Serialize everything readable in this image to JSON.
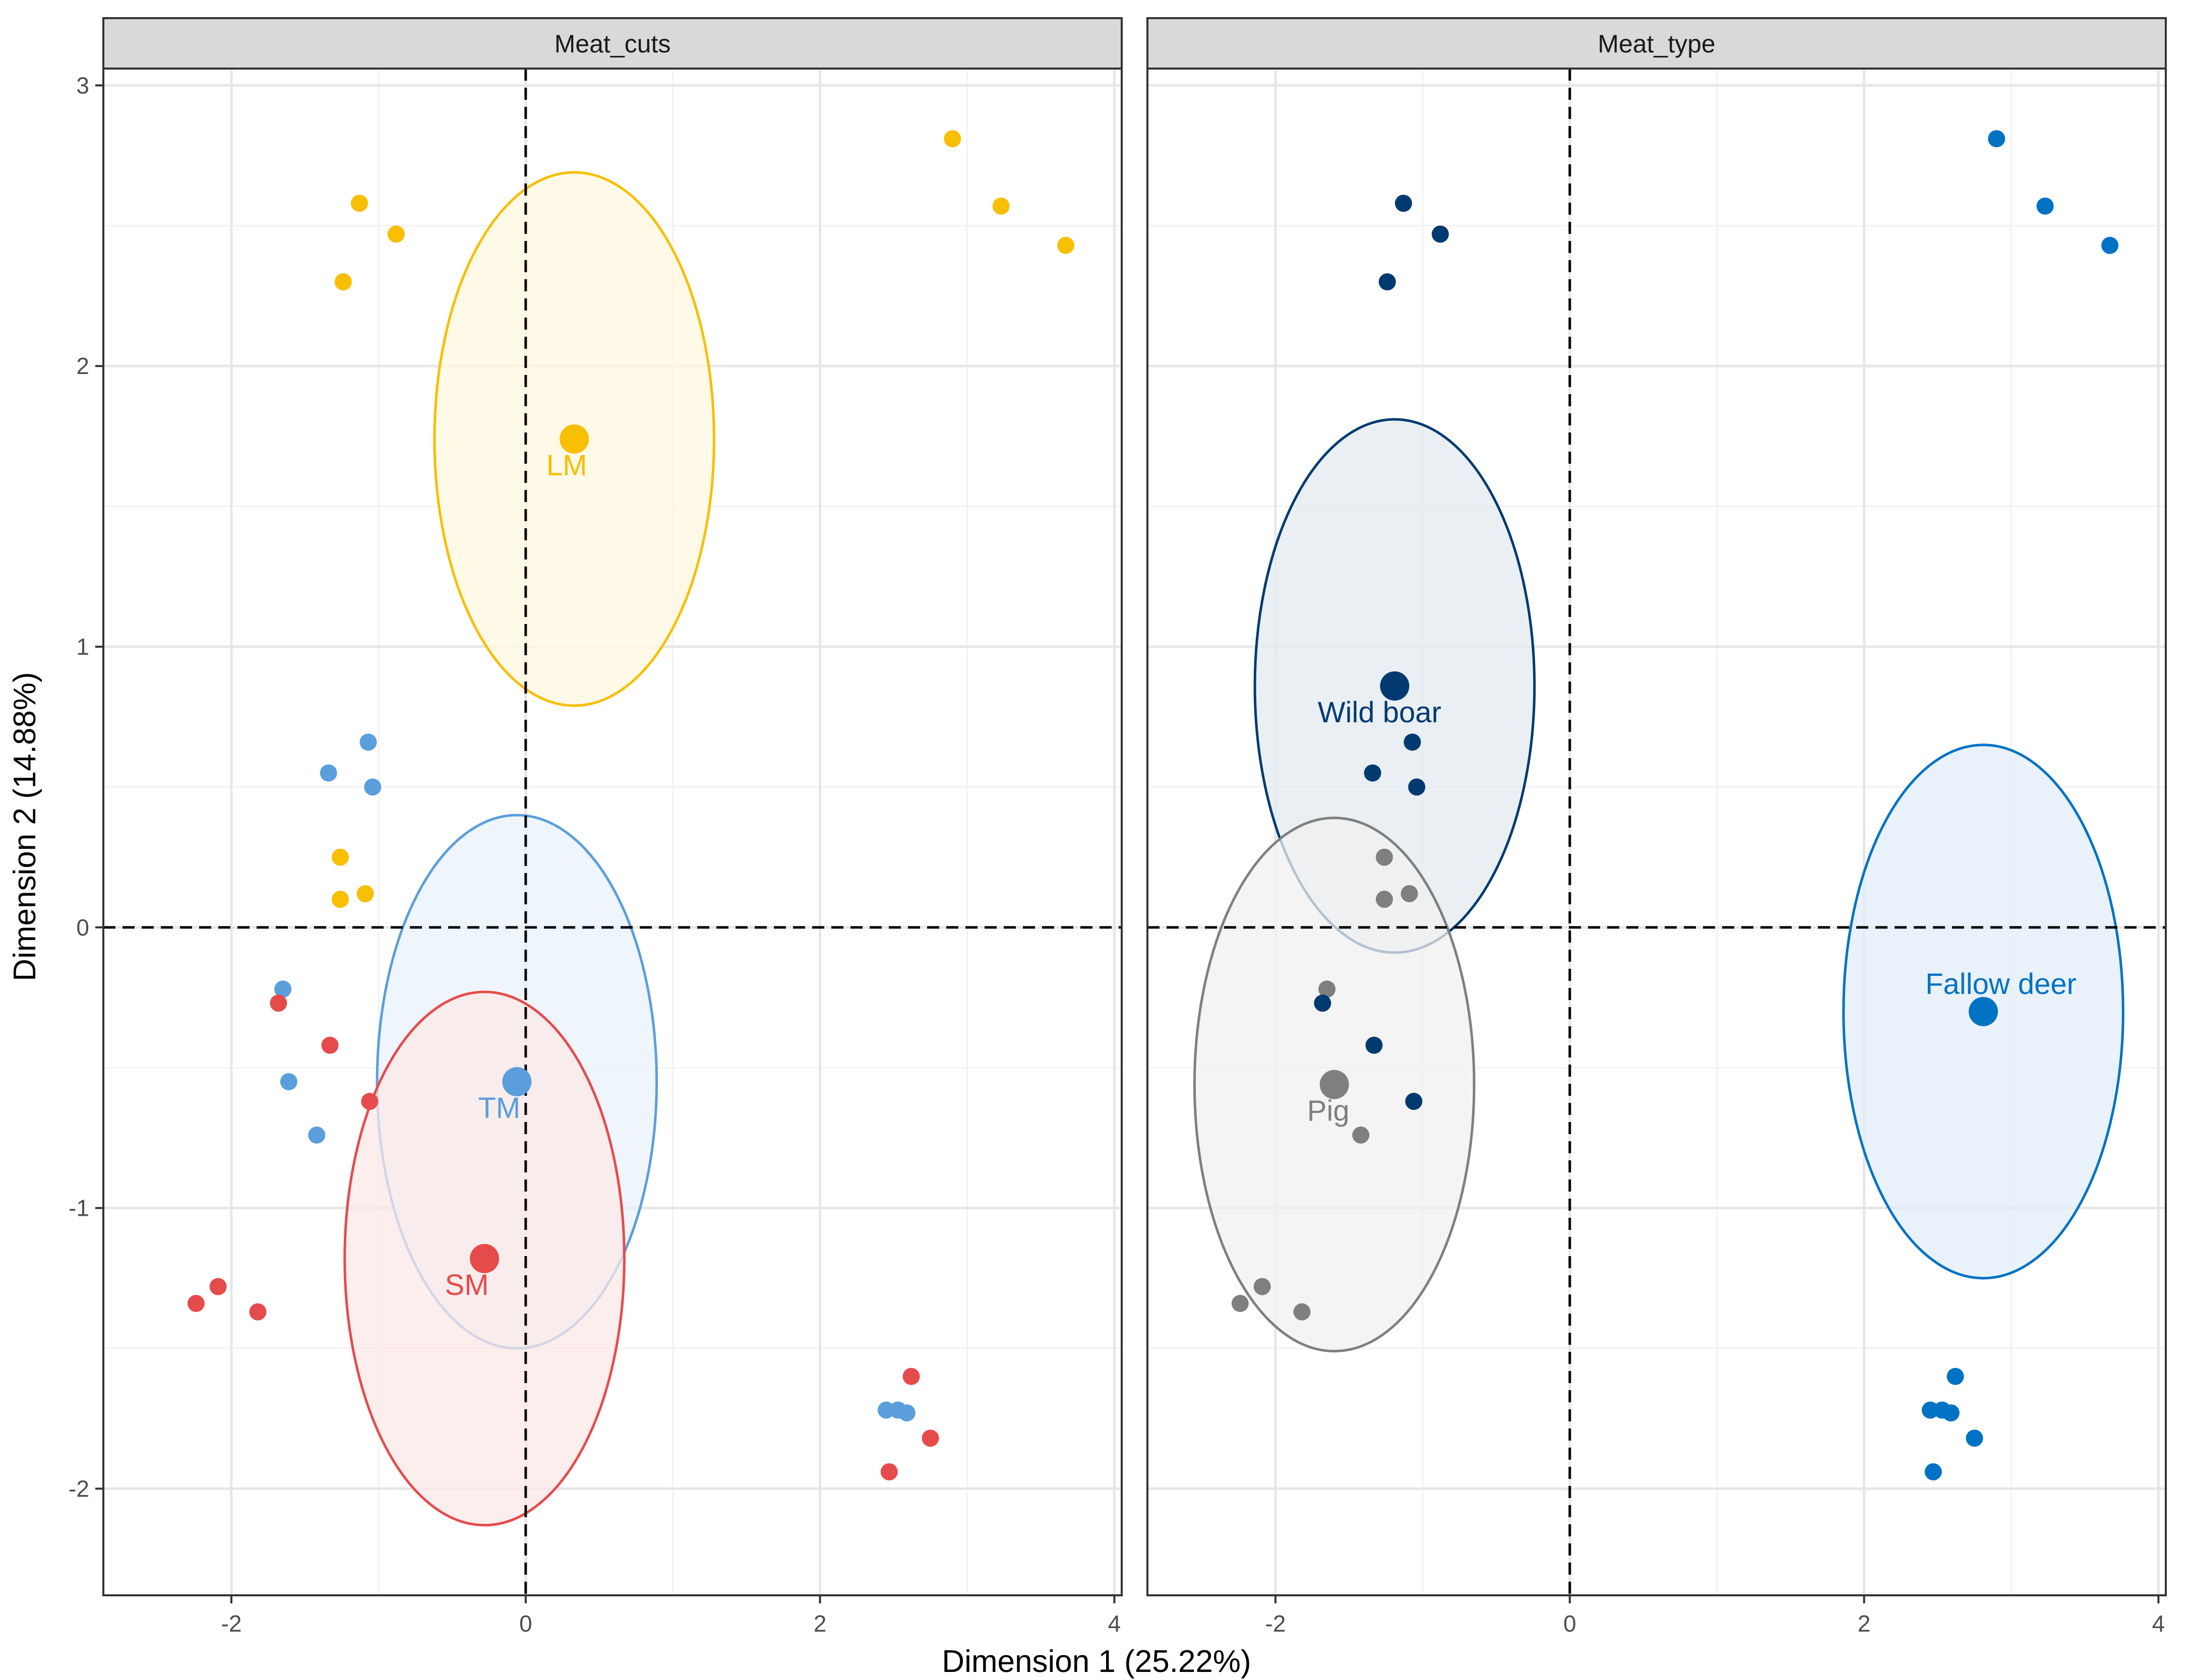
{
  "chart_data": {
    "type": "scatter",
    "xlabel": "Dimension 1 (25.22%)",
    "ylabel": "Dimension 2 (14.88%)",
    "xlim": [
      -2.87,
      4.05
    ],
    "ylim": [
      -2.38,
      3.06
    ],
    "x_ticks": [
      -2,
      0,
      2,
      4
    ],
    "y_ticks": [
      -2,
      -1,
      0,
      1,
      2,
      3
    ],
    "x_tick_labels": [
      "-2",
      "0",
      "2",
      "4"
    ],
    "y_tick_labels": [
      "-2",
      "-1",
      "0",
      "1",
      "2",
      "3"
    ],
    "grid": true,
    "reference_lines": {
      "x": 0,
      "y": 0,
      "style": "dashed"
    },
    "points": [
      {
        "x": -1.13,
        "y": 2.58,
        "cut": "LM",
        "type": "Wild boar"
      },
      {
        "x": -0.88,
        "y": 2.47,
        "cut": "LM",
        "type": "Wild boar"
      },
      {
        "x": -1.24,
        "y": 2.3,
        "cut": "LM",
        "type": "Wild boar"
      },
      {
        "x": 2.9,
        "y": 2.81,
        "cut": "LM",
        "type": "Fallow deer"
      },
      {
        "x": 3.23,
        "y": 2.57,
        "cut": "LM",
        "type": "Fallow deer"
      },
      {
        "x": 3.67,
        "y": 2.43,
        "cut": "LM",
        "type": "Fallow deer"
      },
      {
        "x": -1.26,
        "y": 0.25,
        "cut": "LM",
        "type": "Pig"
      },
      {
        "x": -1.26,
        "y": 0.1,
        "cut": "LM",
        "type": "Pig"
      },
      {
        "x": -1.09,
        "y": 0.12,
        "cut": "LM",
        "type": "Pig"
      },
      {
        "x": -1.07,
        "y": 0.66,
        "cut": "TM",
        "type": "Wild boar"
      },
      {
        "x": -1.34,
        "y": 0.55,
        "cut": "TM",
        "type": "Wild boar"
      },
      {
        "x": -1.04,
        "y": 0.5,
        "cut": "TM",
        "type": "Wild boar"
      },
      {
        "x": -1.65,
        "y": -0.22,
        "cut": "TM",
        "type": "Pig"
      },
      {
        "x": -1.61,
        "y": -0.55,
        "cut": "TM",
        "type": "Pig"
      },
      {
        "x": -1.42,
        "y": -0.74,
        "cut": "TM",
        "type": "Pig"
      },
      {
        "x": 2.45,
        "y": -1.72,
        "cut": "TM",
        "type": "Fallow deer"
      },
      {
        "x": 2.53,
        "y": -1.72,
        "cut": "TM",
        "type": "Fallow deer"
      },
      {
        "x": 2.59,
        "y": -1.73,
        "cut": "TM",
        "type": "Fallow deer"
      },
      {
        "x": -1.68,
        "y": -0.27,
        "cut": "SM",
        "type": "Wild boar"
      },
      {
        "x": -1.33,
        "y": -0.42,
        "cut": "SM",
        "type": "Wild boar"
      },
      {
        "x": -1.06,
        "y": -0.62,
        "cut": "SM",
        "type": "Wild boar"
      },
      {
        "x": -2.24,
        "y": -1.34,
        "cut": "SM",
        "type": "Pig"
      },
      {
        "x": -2.09,
        "y": -1.28,
        "cut": "SM",
        "type": "Pig"
      },
      {
        "x": -1.82,
        "y": -1.37,
        "cut": "SM",
        "type": "Pig"
      },
      {
        "x": 2.62,
        "y": -1.6,
        "cut": "SM",
        "type": "Fallow deer"
      },
      {
        "x": 2.75,
        "y": -1.82,
        "cut": "SM",
        "type": "Fallow deer"
      },
      {
        "x": 2.47,
        "y": -1.94,
        "cut": "SM",
        "type": "Fallow deer"
      }
    ],
    "panels": [
      {
        "strip": "Meat_cuts",
        "group_by": "cut",
        "groups": [
          {
            "name": "LM",
            "label": "LM",
            "color": "#F8BE00",
            "fill": "#FFF7DF",
            "cx": 0.33,
            "cy": 1.74,
            "rx": 0.95,
            "ry": 0.95
          },
          {
            "name": "TM",
            "label": "TM",
            "color": "#5B9EDC",
            "fill": "#EAF2FB",
            "cx": -0.06,
            "cy": -0.55,
            "rx": 0.95,
            "ry": 0.95
          },
          {
            "name": "SM",
            "label": "SM",
            "color": "#E64B4B",
            "fill": "#FCE8E8",
            "cx": -0.28,
            "cy": -1.18,
            "rx": 0.95,
            "ry": 0.95
          }
        ]
      },
      {
        "strip": "Meat_type",
        "group_by": "type",
        "groups": [
          {
            "name": "Wild boar",
            "label": "Wild boar",
            "color": "#003A70",
            "fill": "#E1E9EF",
            "cx": -1.19,
            "cy": 0.86,
            "rx": 0.95,
            "ry": 0.95
          },
          {
            "name": "Pig",
            "label": "Pig",
            "color": "#7F7F7F",
            "fill": "#F0F0F0",
            "cx": -1.6,
            "cy": -0.56,
            "rx": 0.95,
            "ry": 0.95
          },
          {
            "name": "Fallow deer",
            "label": "Fallow deer",
            "color": "#0072C4",
            "fill": "#E1EEF9",
            "cx": 2.81,
            "cy": -0.3,
            "rx": 0.95,
            "ry": 0.95
          }
        ]
      }
    ]
  }
}
